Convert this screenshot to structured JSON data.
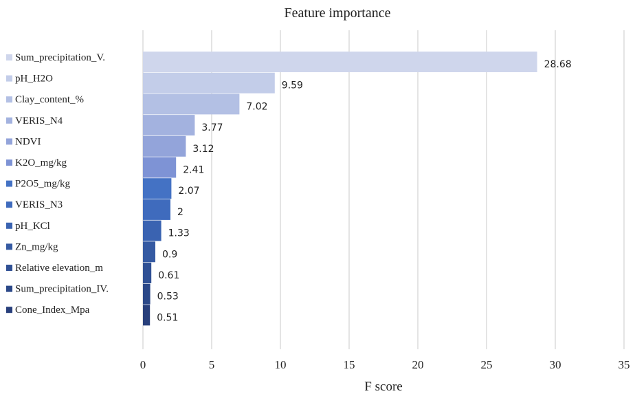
{
  "chart_data": {
    "type": "bar",
    "orientation": "horizontal",
    "title": "Feature importance",
    "xlabel": "F score",
    "ylabel": "",
    "xlim": [
      0,
      35
    ],
    "xticks": [
      0,
      5,
      10,
      15,
      20,
      25,
      30,
      35
    ],
    "grid": true,
    "legend": "left",
    "categories": [
      "Sum_precipitation_V.",
      "pH_H2O",
      "Clay_content_%",
      "VERIS_N4",
      "NDVI",
      "K2O_mg/kg",
      "P2O5_mg/kg",
      "VERIS_N3",
      "pH_KCl",
      "Zn_mg/kg",
      "Relative elevation_m",
      "Sum_precipitation_IV.",
      "Cone_Index_Mpa"
    ],
    "values": [
      28.68,
      9.59,
      7.02,
      3.77,
      3.12,
      2.41,
      2.07,
      2,
      1.33,
      0.9,
      0.61,
      0.53,
      0.51
    ],
    "data_labels": [
      "28.68",
      "9.59",
      "7.02",
      "3.77",
      "3.12",
      "2.41",
      "2.07",
      "2",
      "1.33",
      "0.9",
      "0.61",
      "0.53",
      "0.51"
    ],
    "colors": [
      "#cfd6ec",
      "#c3cde9",
      "#b3c0e4",
      "#a3b2df",
      "#93a4da",
      "#7e93d5",
      "#4472c4",
      "#3f6bbd",
      "#3a63b1",
      "#355aa2",
      "#2f5094",
      "#2b4888",
      "#283f7b"
    ]
  }
}
